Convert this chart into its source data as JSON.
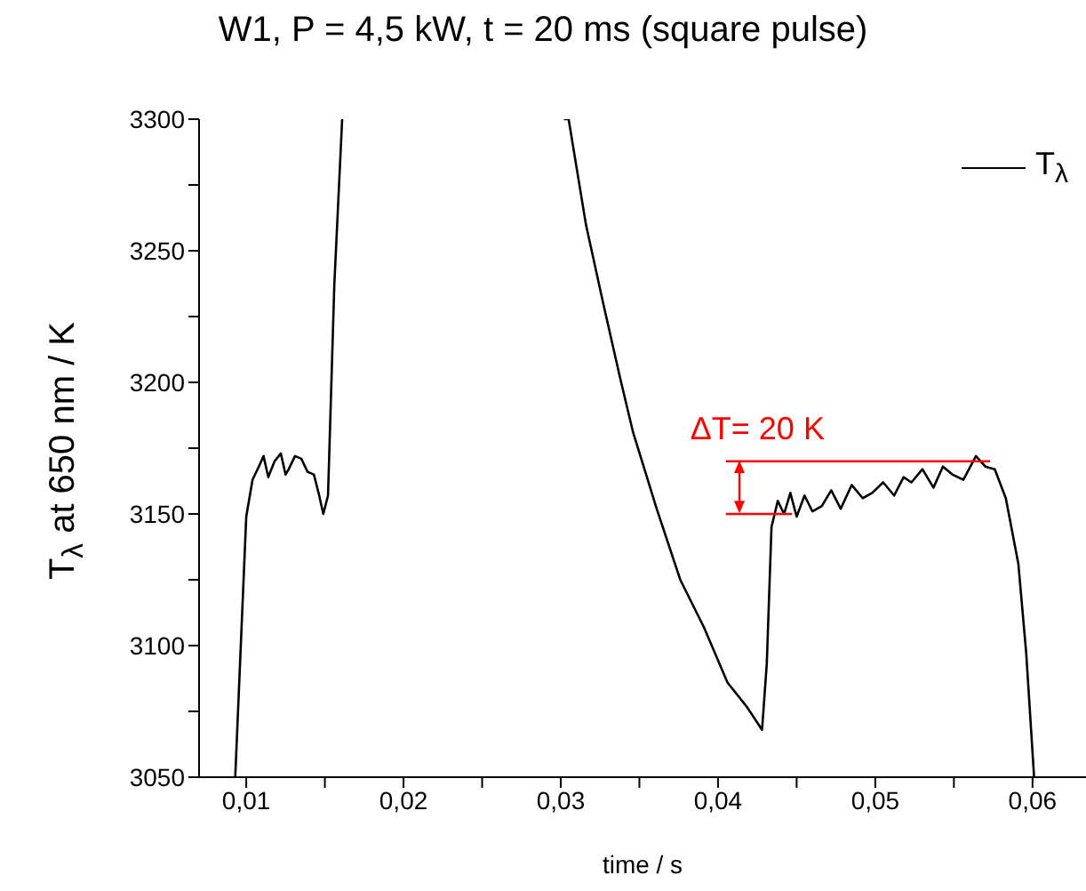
{
  "chart_data": {
    "type": "line",
    "title": "W1, P = 4,5 kW, t = 20 ms (square pulse)",
    "xlabel": "time / s",
    "ylabel": "T$_{λ}$ at 650 nm / K",
    "xlim": [
      0.007,
      0.0634
    ],
    "ylim": [
      3050,
      3300
    ],
    "xticks": [
      {
        "value": 0.01,
        "label": "0,01"
      },
      {
        "value": 0.015,
        "label": null
      },
      {
        "value": 0.02,
        "label": "0,02"
      },
      {
        "value": 0.025,
        "label": null
      },
      {
        "value": 0.03,
        "label": "0,03"
      },
      {
        "value": 0.035,
        "label": null
      },
      {
        "value": 0.04,
        "label": "0,04"
      },
      {
        "value": 0.045,
        "label": null
      },
      {
        "value": 0.05,
        "label": "0,05"
      },
      {
        "value": 0.055,
        "label": null
      },
      {
        "value": 0.06,
        "label": "0,06"
      }
    ],
    "yticks": [
      3050,
      {
        "value": 3075,
        "label": null
      },
      3100,
      {
        "value": 3125,
        "label": null
      },
      3150,
      {
        "value": 3175,
        "label": null
      },
      3200,
      {
        "value": 3225,
        "label": null
      },
      3250,
      {
        "value": 3275,
        "label": null
      },
      3300
    ],
    "legend": "top right",
    "annotations": [
      {
        "text": "ΔT= 20 K",
        "x": 0.0405,
        "y": 3170
      }
    ],
    "series": [
      {
        "name": "T$_{λ}$",
        "color": "#000000",
        "x": [
          0.0093,
          0.01,
          0.0104,
          0.0108,
          0.0111,
          0.0114,
          0.0118,
          0.0122,
          0.0125,
          0.0127,
          0.0131,
          0.0135,
          0.0139,
          0.0143,
          0.0146,
          0.0149,
          0.0152,
          0.0156,
          0.0161,
          0.0162,
          0.0302,
          0.0305,
          0.0316,
          0.0327,
          0.0338,
          0.0346,
          0.0361,
          0.0376,
          0.0391,
          0.0406,
          0.0418,
          0.0428,
          0.0431,
          0.0434,
          0.0438,
          0.0442,
          0.0446,
          0.045,
          0.0455,
          0.046,
          0.0466,
          0.0472,
          0.0478,
          0.0485,
          0.0492,
          0.0498,
          0.0505,
          0.0512,
          0.0518,
          0.0523,
          0.053,
          0.0537,
          0.0543,
          0.0549,
          0.0556,
          0.0564,
          0.057,
          0.0576,
          0.0583,
          0.0591,
          0.0596,
          0.0601
        ],
        "values": [
          3050,
          3149,
          3163,
          3168,
          3172,
          3164,
          3170,
          3173,
          3165,
          3167,
          3172,
          3171,
          3166,
          3165,
          3158,
          3150,
          3157,
          3237,
          3300,
          null,
          3300,
          3300,
          3260,
          3230,
          3201,
          3181,
          3152,
          3125,
          3107,
          3086,
          3077,
          3068,
          3093,
          3145,
          3155,
          3150,
          3158,
          3149,
          3157,
          3151,
          3153,
          3159,
          3152,
          3161,
          3156,
          3158,
          3162,
          3157,
          3164,
          3162,
          3167,
          3160,
          3168,
          3165,
          3163,
          3172,
          3168,
          3167,
          3156,
          3131,
          3097,
          3050
        ]
      },
      {
        "color": "#ff0000",
        "x": [
          0.0405,
          0.0573
        ],
        "values": [
          3170,
          3170
        ]
      },
      {
        "color": "#ff0000",
        "x": [
          0.0405,
          0.0447
        ],
        "values": [
          3150,
          3150
        ]
      }
    ]
  }
}
